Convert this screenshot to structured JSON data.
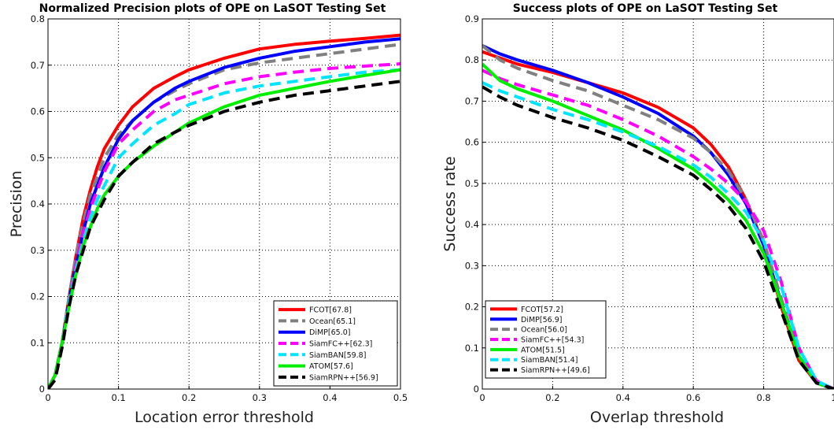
{
  "chart_data": [
    {
      "type": "line",
      "title": "Normalized Precision plots of OPE on LaSOT Testing Set",
      "xlabel": "Location error threshold",
      "ylabel": "Precision",
      "xlim": [
        0,
        0.5
      ],
      "ylim": [
        0,
        0.8
      ],
      "xticks": [
        0,
        0.1,
        0.2,
        0.3,
        0.4,
        0.5
      ],
      "yticks": [
        0,
        0.1,
        0.2,
        0.3,
        0.4,
        0.5,
        0.6,
        0.7,
        0.8
      ],
      "xtick_labels": [
        "0",
        "0.1",
        "0.2",
        "0.3",
        "0.4",
        "0.5"
      ],
      "ytick_labels": [
        "0",
        "0.1",
        "0.2",
        "0.3",
        "0.4",
        "0.5",
        "0.6",
        "0.7",
        "0.8"
      ],
      "grid": true,
      "legend_position": "bottom-right",
      "x": [
        0,
        0.01,
        0.02,
        0.03,
        0.04,
        0.05,
        0.06,
        0.07,
        0.08,
        0.1,
        0.12,
        0.15,
        0.18,
        0.2,
        0.25,
        0.3,
        0.35,
        0.4,
        0.45,
        0.5
      ],
      "series": [
        {
          "name": "FCOT[67.8]",
          "color": "#ff0000",
          "dash": "solid",
          "values": [
            0,
            0.03,
            0.1,
            0.2,
            0.29,
            0.37,
            0.43,
            0.48,
            0.52,
            0.57,
            0.61,
            0.65,
            0.675,
            0.69,
            0.715,
            0.735,
            0.745,
            0.752,
            0.758,
            0.765
          ]
        },
        {
          "name": "Ocean[65.1]",
          "color": "#808080",
          "dash": "dash",
          "values": [
            0,
            0.03,
            0.1,
            0.2,
            0.29,
            0.36,
            0.42,
            0.46,
            0.5,
            0.55,
            0.58,
            0.62,
            0.645,
            0.66,
            0.69,
            0.705,
            0.715,
            0.725,
            0.735,
            0.745
          ]
        },
        {
          "name": "DiMP[65.0]",
          "color": "#0000ff",
          "dash": "solid",
          "values": [
            0,
            0.03,
            0.1,
            0.19,
            0.27,
            0.34,
            0.4,
            0.44,
            0.48,
            0.54,
            0.58,
            0.62,
            0.65,
            0.665,
            0.695,
            0.715,
            0.73,
            0.74,
            0.75,
            0.757
          ]
        },
        {
          "name": "SiamFC++[62.3]",
          "color": "#ff00ff",
          "dash": "dash",
          "values": [
            0,
            0.03,
            0.1,
            0.19,
            0.27,
            0.34,
            0.39,
            0.43,
            0.47,
            0.53,
            0.56,
            0.6,
            0.625,
            0.635,
            0.66,
            0.675,
            0.685,
            0.693,
            0.698,
            0.703
          ]
        },
        {
          "name": "SiamBAN[59.8]",
          "color": "#00e5ff",
          "dash": "dash",
          "values": [
            0,
            0.03,
            0.1,
            0.19,
            0.26,
            0.32,
            0.37,
            0.41,
            0.44,
            0.5,
            0.53,
            0.57,
            0.595,
            0.615,
            0.64,
            0.655,
            0.665,
            0.675,
            0.685,
            0.69
          ]
        },
        {
          "name": "ATOM[57.6]",
          "color": "#00ee00",
          "dash": "solid",
          "values": [
            0,
            0.03,
            0.1,
            0.18,
            0.25,
            0.31,
            0.35,
            0.39,
            0.42,
            0.46,
            0.49,
            0.525,
            0.555,
            0.575,
            0.61,
            0.635,
            0.65,
            0.665,
            0.678,
            0.69
          ]
        },
        {
          "name": "SiamRPN++[56.9]",
          "color": "#000000",
          "dash": "dash",
          "values": [
            0,
            0.02,
            0.09,
            0.18,
            0.25,
            0.3,
            0.35,
            0.38,
            0.41,
            0.46,
            0.49,
            0.53,
            0.555,
            0.57,
            0.6,
            0.62,
            0.635,
            0.645,
            0.655,
            0.665
          ]
        }
      ]
    },
    {
      "type": "line",
      "title": "Success plots of OPE on LaSOT Testing Set",
      "xlabel": "Overlap threshold",
      "ylabel": "Success rate",
      "xlim": [
        0,
        1
      ],
      "ylim": [
        0,
        0.9
      ],
      "xticks": [
        0,
        0.2,
        0.4,
        0.6,
        0.8,
        1
      ],
      "yticks": [
        0,
        0.1,
        0.2,
        0.3,
        0.4,
        0.5,
        0.6,
        0.7,
        0.8,
        0.9
      ],
      "xtick_labels": [
        "0",
        "0.2",
        "0.4",
        "0.6",
        "0.8",
        "1"
      ],
      "ytick_labels": [
        "0",
        "0.1",
        "0.2",
        "0.3",
        "0.4",
        "0.5",
        "0.6",
        "0.7",
        "0.8",
        "0.9"
      ],
      "grid": true,
      "legend_position": "bottom-left",
      "x": [
        0,
        0.05,
        0.1,
        0.2,
        0.3,
        0.4,
        0.5,
        0.6,
        0.65,
        0.7,
        0.75,
        0.8,
        0.85,
        0.9,
        0.95,
        1.0
      ],
      "series": [
        {
          "name": "FCOT[57.2]",
          "color": "#ff0000",
          "dash": "solid",
          "values": [
            0.82,
            0.805,
            0.79,
            0.77,
            0.745,
            0.72,
            0.685,
            0.635,
            0.595,
            0.54,
            0.46,
            0.35,
            0.2,
            0.07,
            0.015,
            0
          ]
        },
        {
          "name": "DiMP[56.9]",
          "color": "#0000ff",
          "dash": "solid",
          "values": [
            0.835,
            0.815,
            0.8,
            0.775,
            0.745,
            0.71,
            0.67,
            0.615,
            0.575,
            0.52,
            0.45,
            0.35,
            0.21,
            0.08,
            0.015,
            0
          ]
        },
        {
          "name": "Ocean[56.0]",
          "color": "#808080",
          "dash": "dash",
          "values": [
            0.835,
            0.8,
            0.78,
            0.75,
            0.725,
            0.69,
            0.655,
            0.61,
            0.575,
            0.53,
            0.46,
            0.36,
            0.22,
            0.08,
            0.015,
            0
          ]
        },
        {
          "name": "SiamFC++[54.3]",
          "color": "#ff00ff",
          "dash": "dash",
          "values": [
            0.775,
            0.755,
            0.74,
            0.715,
            0.69,
            0.655,
            0.615,
            0.565,
            0.535,
            0.5,
            0.455,
            0.385,
            0.26,
            0.1,
            0.02,
            0
          ]
        },
        {
          "name": "ATOM[51.5]",
          "color": "#00ee00",
          "dash": "solid",
          "values": [
            0.79,
            0.75,
            0.73,
            0.7,
            0.665,
            0.63,
            0.585,
            0.535,
            0.5,
            0.46,
            0.41,
            0.33,
            0.21,
            0.08,
            0.015,
            0
          ]
        },
        {
          "name": "SiamBAN[51.4]",
          "color": "#00e5ff",
          "dash": "dash",
          "values": [
            0.745,
            0.725,
            0.71,
            0.68,
            0.655,
            0.625,
            0.59,
            0.545,
            0.515,
            0.475,
            0.43,
            0.36,
            0.25,
            0.1,
            0.02,
            0
          ]
        },
        {
          "name": "SiamRPN++[49.6]",
          "color": "#000000",
          "dash": "dash",
          "values": [
            0.735,
            0.71,
            0.69,
            0.66,
            0.635,
            0.605,
            0.565,
            0.52,
            0.485,
            0.445,
            0.39,
            0.31,
            0.19,
            0.07,
            0.015,
            0
          ]
        }
      ]
    }
  ]
}
